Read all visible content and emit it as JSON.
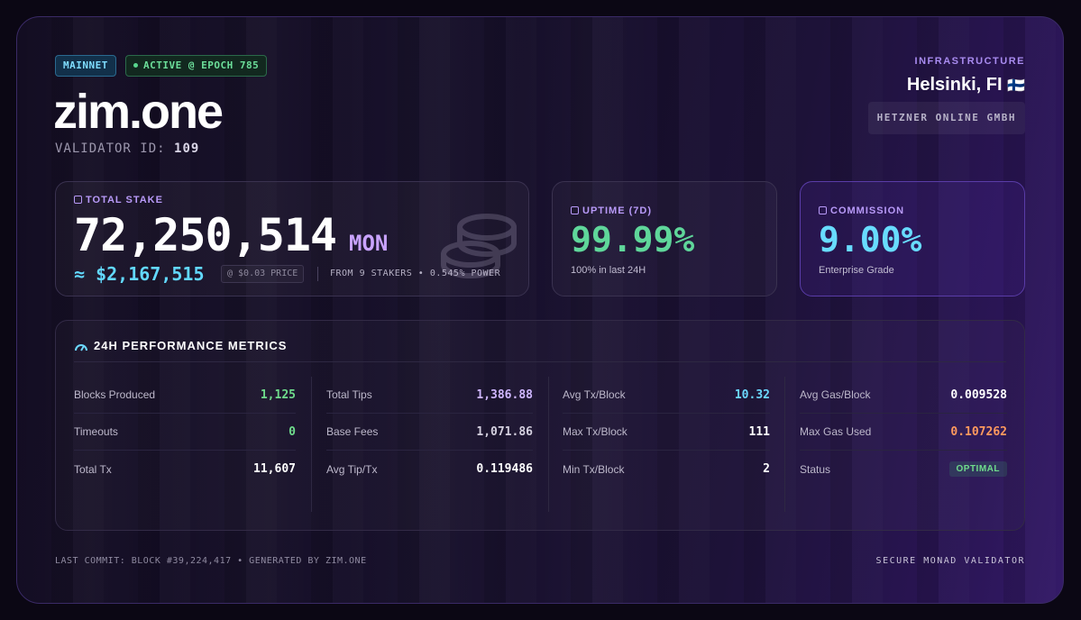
{
  "header": {
    "network_badge": "MAINNET",
    "status_badge": "ACTIVE @ EPOCH 785",
    "brand": "zim.one",
    "validator_id_label": "VALIDATOR ID:",
    "validator_id": "109"
  },
  "infrastructure": {
    "label": "INFRASTRUCTURE",
    "city": "Helsinki, FI",
    "flag": "🇫🇮",
    "host": "HETZNER ONLINE GMBH"
  },
  "stake": {
    "label": "TOTAL STAKE",
    "value": "72,250,514",
    "unit": "MON",
    "usd": "≈ $2,167,515",
    "price": "@ $0.03 PRICE",
    "from": "FROM 9 STAKERS • 0.545% POWER"
  },
  "uptime": {
    "label": "UPTIME (7D)",
    "value": "99.99%",
    "note": "100% in last 24H"
  },
  "commission": {
    "label": "COMMISSION",
    "value": "9.00%",
    "note": "Enterprise Grade"
  },
  "metrics": {
    "title": "24H PERFORMANCE METRICS",
    "columns": [
      [
        {
          "label": "Blocks Produced",
          "value": "1,125"
        },
        {
          "label": "Timeouts",
          "value": "0"
        },
        {
          "label": "Total Tx",
          "value": "11,607"
        }
      ],
      [
        {
          "label": "Total Tips",
          "value": "1,386.88"
        },
        {
          "label": "Base Fees",
          "value": "1,071.86"
        },
        {
          "label": "Avg Tip/Tx",
          "value": "0.119486"
        }
      ],
      [
        {
          "label": "Avg Tx/Block",
          "value": "10.32"
        },
        {
          "label": "Max Tx/Block",
          "value": "111"
        },
        {
          "label": "Min Tx/Block",
          "value": "2"
        }
      ],
      [
        {
          "label": "Avg Gas/Block",
          "value": "0.009528"
        },
        {
          "label": "Max Gas Used",
          "value": "0.107262"
        },
        {
          "label": "Status",
          "value": "OPTIMAL"
        }
      ]
    ]
  },
  "footer": {
    "left": "LAST COMMIT: BLOCK #39,224,417 • GENERATED BY ZIM.ONE",
    "right": "SECURE MONAD VALIDATOR"
  },
  "colors": {
    "accent_purple": "#b89af8",
    "accent_cyan": "#62d9ff",
    "accent_green": "#5fd69a",
    "accent_orange": "#ff9a5e"
  }
}
